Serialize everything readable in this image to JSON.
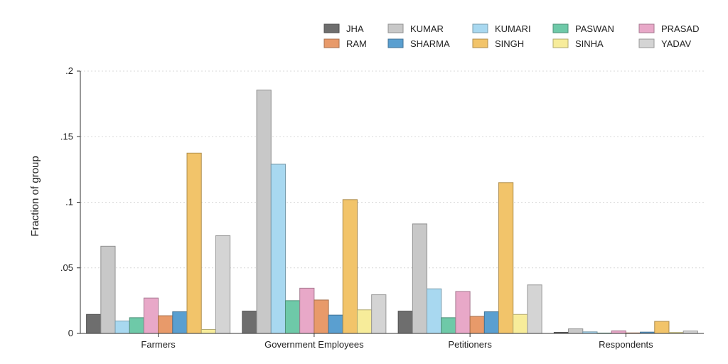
{
  "chart_data": {
    "type": "bar",
    "ylabel": "Fraction of group",
    "xlabel": "",
    "ylim": [
      0,
      0.2
    ],
    "yticks": [
      0,
      0.05,
      0.1,
      0.15,
      0.2
    ],
    "ytick_labels": [
      "0",
      ".05",
      ".1",
      ".15",
      ".2"
    ],
    "grid": "horizontal dotted",
    "legend_position": "top-right",
    "categories": [
      "Farmers",
      "Government Employees",
      "Petitioners",
      "Respondents"
    ],
    "series": [
      {
        "name": "JHA",
        "color": "#6e6e6e",
        "values": [
          0.0145,
          0.017,
          0.017,
          0.0008
        ]
      },
      {
        "name": "KUMAR",
        "color": "#c8c8c8",
        "values": [
          0.0665,
          0.1855,
          0.0835,
          0.0035
        ]
      },
      {
        "name": "KUMARI",
        "color": "#a8d8f0",
        "values": [
          0.0095,
          0.129,
          0.034,
          0.0012
        ]
      },
      {
        "name": "PASWAN",
        "color": "#6ec9a8",
        "values": [
          0.012,
          0.025,
          0.012,
          0.0003
        ]
      },
      {
        "name": "PRASAD",
        "color": "#e8a8c8",
        "values": [
          0.027,
          0.0345,
          0.032,
          0.002
        ]
      },
      {
        "name": "RAM",
        "color": "#e89a6a",
        "values": [
          0.0135,
          0.0255,
          0.013,
          0.0004
        ]
      },
      {
        "name": "SHARMA",
        "color": "#5a9fd0",
        "values": [
          0.0165,
          0.014,
          0.0165,
          0.001
        ]
      },
      {
        "name": "SINGH",
        "color": "#f2c46a",
        "values": [
          0.1375,
          0.102,
          0.115,
          0.0092
        ]
      },
      {
        "name": "SINHA",
        "color": "#f7ec9a",
        "values": [
          0.003,
          0.018,
          0.0145,
          0.0007
        ]
      },
      {
        "name": "YADAV",
        "color": "#d4d4d4",
        "values": [
          0.0745,
          0.0295,
          0.037,
          0.0019
        ]
      }
    ],
    "legend_order": [
      "JHA",
      "KUMAR",
      "KUMARI",
      "PASWAN",
      "PRASAD",
      "RAM",
      "SHARMA",
      "SINGH",
      "SINHA",
      "YADAV"
    ]
  }
}
